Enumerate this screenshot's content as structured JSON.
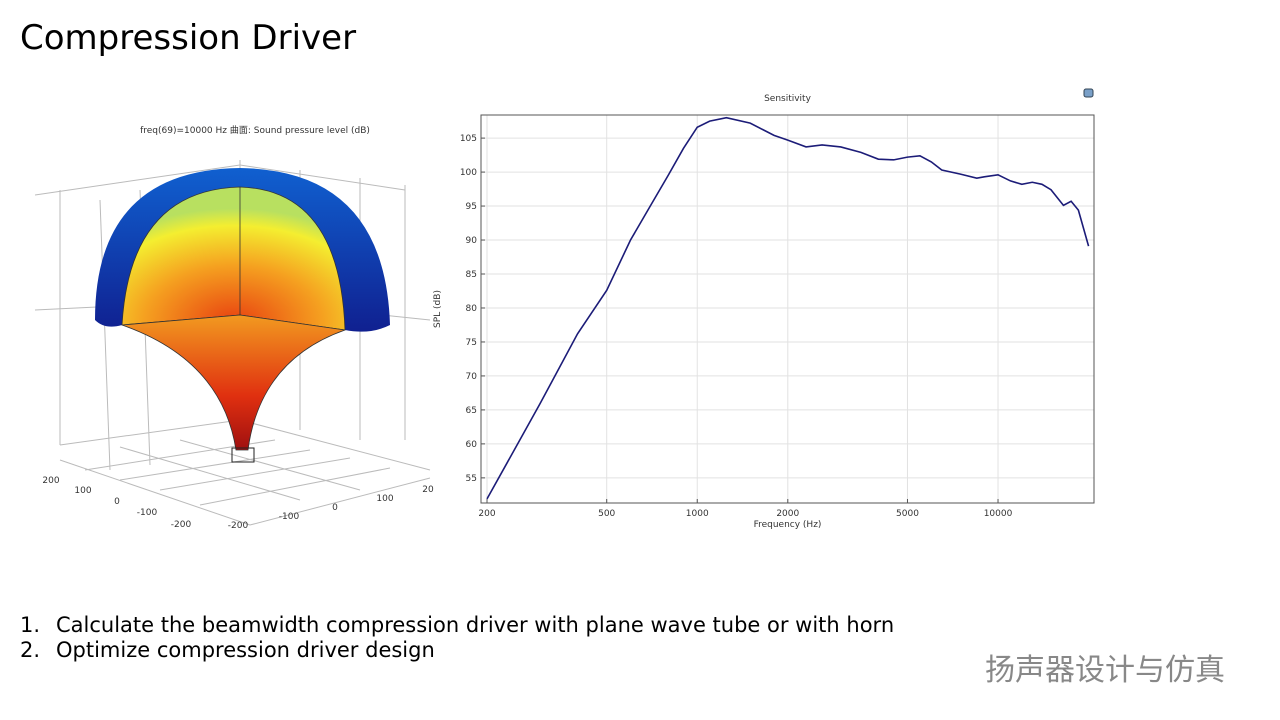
{
  "title": "Compression Driver",
  "figure": {
    "title": "freq(69)=10000 Hz   曲面: Sound pressure level (dB)",
    "ticks": [
      "200",
      "100",
      "0",
      "-100",
      "-200",
      "-200",
      "-100",
      "0",
      "100",
      "20"
    ]
  },
  "bullets": [
    {
      "number": "1.",
      "text": "Calculate the beamwidth compression driver  with plane wave tube or with horn"
    },
    {
      "number": "2.",
      "text": "Optimize compression driver design"
    }
  ],
  "watermark": "扬声器设计与仿真",
  "chart_data": {
    "type": "line",
    "title": "Sensitivity",
    "x_label": "Frequency (Hz)",
    "y_label": "SPL (dB)",
    "x_scale": "log",
    "grid": true,
    "xlim": [
      191,
      20850
    ],
    "xticks": [
      200,
      500,
      1000,
      2000,
      5000,
      10000
    ],
    "ylim": [
      51.3,
      108.4
    ],
    "yticks": [
      55,
      60,
      65,
      70,
      75,
      80,
      85,
      90,
      95,
      100,
      105
    ],
    "series": [
      {
        "name": "Sensitivity",
        "color": "#1c1c78",
        "x": [
          200,
          300,
          400,
          500,
          600,
          700,
          800,
          900,
          1000,
          1100,
          1250,
          1500,
          1800,
          2000,
          2300,
          2600,
          3000,
          3500,
          4000,
          4500,
          5000,
          5500,
          6000,
          6500,
          7500,
          8500,
          9000,
          10000,
          11000,
          12000,
          13000,
          14000,
          15000,
          16500,
          17500,
          18500,
          20000
        ],
        "values": [
          51.9,
          65.9,
          76.2,
          82.6,
          90,
          95.1,
          99.5,
          103.5,
          106.6,
          107.5,
          108,
          107.2,
          105.4,
          104.7,
          103.7,
          104,
          103.7,
          102.9,
          101.9,
          101.8,
          102.2,
          102.4,
          101.5,
          100.3,
          99.7,
          99.1,
          99.3,
          99.6,
          98.7,
          98.2,
          98.5,
          98.2,
          97.4,
          95.1,
          95.7,
          94.4,
          89.1
        ]
      }
    ]
  }
}
